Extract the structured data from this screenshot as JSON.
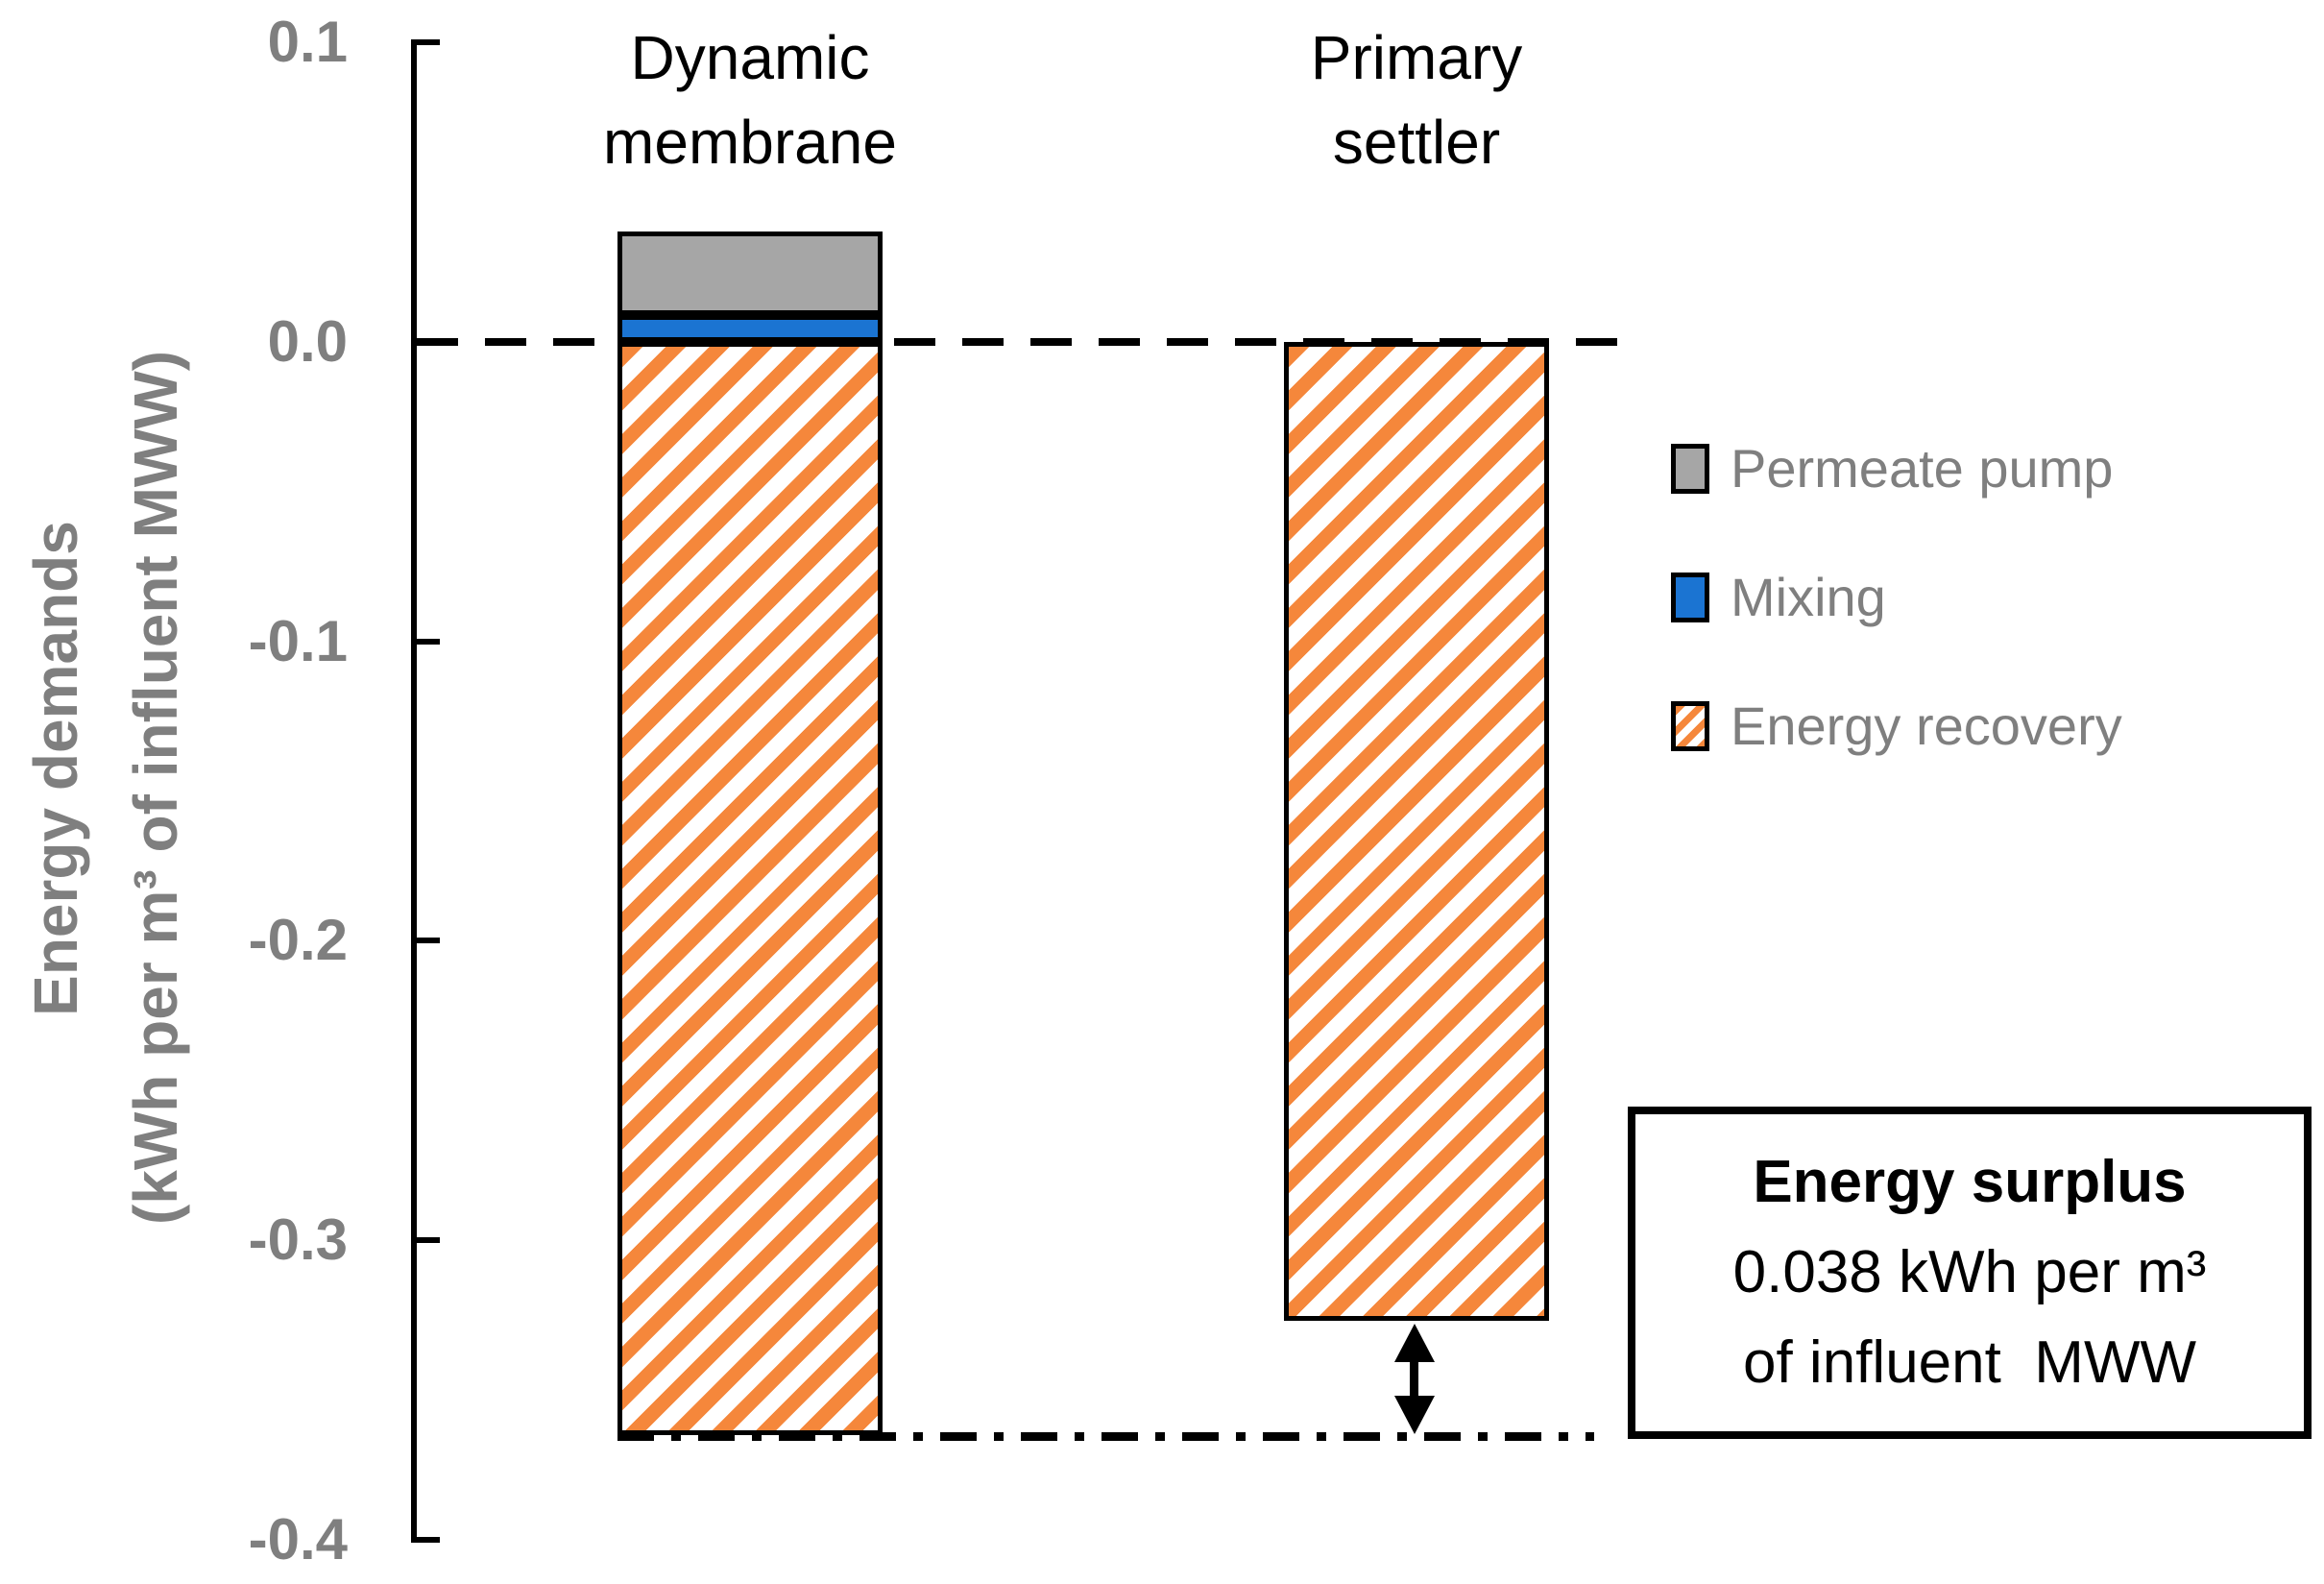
{
  "colors": {
    "permeate_pump_fill": "#A6A6A6",
    "mixing_fill": "#1B74D2",
    "energy_recovery_stripe": "#F5873B",
    "axis_text": "#7F7F7F",
    "line_color": "#000000"
  },
  "y_axis": {
    "title_line1": "Energy demands",
    "title_line2": "(kWh per m³ of influent MWW)",
    "ticks": [
      {
        "label": "0.1",
        "value": 0.1
      },
      {
        "label": "0.0",
        "value": 0.0
      },
      {
        "label": "-0.1",
        "value": -0.1
      },
      {
        "label": "-0.2",
        "value": -0.2
      },
      {
        "label": "-0.3",
        "value": -0.3
      },
      {
        "label": "-0.4",
        "value": -0.4
      }
    ]
  },
  "categories": [
    {
      "label_line1": "Dynamic",
      "label_line2": "membrane"
    },
    {
      "label_line1": "Primary",
      "label_line2": "settler"
    }
  ],
  "legend": [
    {
      "label": "Permeate pump",
      "style": "gray"
    },
    {
      "label": "Mixing",
      "style": "blue"
    },
    {
      "label": "Energy recovery",
      "style": "hatch"
    }
  ],
  "annotation_box": {
    "line1": "Energy surplus",
    "line2": "0.038 kWh per m³",
    "line3": "of influent  MWW"
  },
  "chart_data": {
    "type": "bar",
    "stacked": true,
    "title": "",
    "xlabel": "",
    "ylabel": "Energy demands (kWh per m³ of influent MWW)",
    "ylim": [
      -0.4,
      0.1
    ],
    "ytick_step": 0.1,
    "grid": false,
    "legend_position": "right",
    "categories": [
      "Dynamic membrane",
      "Primary settler"
    ],
    "series": [
      {
        "name": "Permeate pump",
        "values": [
          0.028,
          0
        ]
      },
      {
        "name": "Mixing",
        "values": [
          0.009,
          0
        ]
      },
      {
        "name": "Energy recovery",
        "values": [
          -0.365,
          -0.327
        ]
      }
    ],
    "bars": [
      {
        "category": "Dynamic membrane",
        "segments": [
          {
            "series": "Mixing",
            "from": 0,
            "to": 0.009
          },
          {
            "series": "Permeate pump",
            "from": 0.009,
            "to": 0.037
          },
          {
            "series": "Energy recovery",
            "from": -0.365,
            "to": 0
          }
        ]
      },
      {
        "category": "Primary settler",
        "segments": [
          {
            "series": "Energy recovery",
            "from": -0.327,
            "to": 0
          }
        ]
      }
    ],
    "annotations": [
      {
        "type": "dashed-line",
        "y": 0
      },
      {
        "type": "dashdot-line",
        "y": -0.365
      },
      {
        "type": "double-arrow",
        "x_category": "Primary settler",
        "from": -0.327,
        "to": -0.365
      },
      {
        "type": "text-box",
        "text": "Energy surplus 0.038 kWh per m³ of influent MWW"
      }
    ]
  }
}
